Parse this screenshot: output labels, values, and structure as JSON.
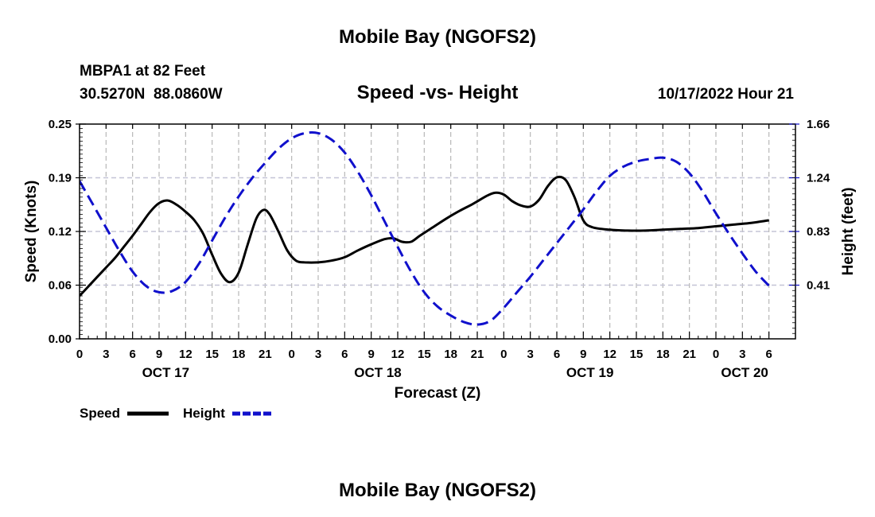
{
  "chart_data": {
    "type": "line",
    "title": "Mobile Bay (NGOFS2)",
    "footer_title": "Mobile Bay (NGOFS2)",
    "subtitle": "Speed -vs- Height",
    "station": "MBPA1 at 82 Feet",
    "coords": "30.5270N  88.0860W",
    "run_time": "10/17/2022 Hour 21",
    "xlabel": "Forecast (Z)",
    "ylabel": "Speed (Knots)",
    "y2label": "Height (feet)",
    "x_range": [
      0,
      81
    ],
    "ylim": [
      0,
      0.25
    ],
    "y2lim": [
      0,
      1.66
    ],
    "x_ticks": [
      {
        "x": 0,
        "label": "0"
      },
      {
        "x": 3,
        "label": "3"
      },
      {
        "x": 6,
        "label": "6"
      },
      {
        "x": 9,
        "label": "9"
      },
      {
        "x": 12,
        "label": "12"
      },
      {
        "x": 15,
        "label": "15"
      },
      {
        "x": 18,
        "label": "18"
      },
      {
        "x": 21,
        "label": "21"
      },
      {
        "x": 24,
        "label": "0"
      },
      {
        "x": 27,
        "label": "3"
      },
      {
        "x": 30,
        "label": "6"
      },
      {
        "x": 33,
        "label": "9"
      },
      {
        "x": 36,
        "label": "12"
      },
      {
        "x": 39,
        "label": "15"
      },
      {
        "x": 42,
        "label": "18"
      },
      {
        "x": 45,
        "label": "21"
      },
      {
        "x": 48,
        "label": "0"
      },
      {
        "x": 51,
        "label": "3"
      },
      {
        "x": 54,
        "label": "6"
      },
      {
        "x": 57,
        "label": "9"
      },
      {
        "x": 60,
        "label": "12"
      },
      {
        "x": 63,
        "label": "15"
      },
      {
        "x": 66,
        "label": "18"
      },
      {
        "x": 69,
        "label": "21"
      },
      {
        "x": 72,
        "label": "0"
      },
      {
        "x": 75,
        "label": "3"
      },
      {
        "x": 78,
        "label": "6"
      }
    ],
    "date_labels": [
      {
        "x": 9.75,
        "label": "OCT 17"
      },
      {
        "x": 33.75,
        "label": "OCT 18"
      },
      {
        "x": 57.75,
        "label": "OCT 19"
      },
      {
        "x": 75.25,
        "label": "OCT 20"
      }
    ],
    "y_ticks": [
      "0.00",
      "0.06",
      "0.12",
      "0.19",
      "0.25"
    ],
    "y_tick_values": [
      0,
      0.0625,
      0.125,
      0.1875,
      0.25
    ],
    "y2_ticks": [
      "0.41",
      "0.83",
      "1.24",
      "1.66"
    ],
    "y2_tick_values": [
      0.415,
      0.83,
      1.245,
      1.66
    ],
    "legend": [
      {
        "name": "Speed",
        "color": "#000000",
        "dash": "solid"
      },
      {
        "name": "Height",
        "color": "#1010cc",
        "dash": "dashed"
      }
    ],
    "series": [
      {
        "name": "Speed",
        "axis": "left",
        "color": "#000000",
        "points": [
          [
            0,
            0.05
          ],
          [
            1,
            0.061
          ],
          [
            2,
            0.072
          ],
          [
            3,
            0.083
          ],
          [
            4,
            0.094
          ],
          [
            5,
            0.107
          ],
          [
            6,
            0.12
          ],
          [
            7,
            0.134
          ],
          [
            8,
            0.148
          ],
          [
            9,
            0.158
          ],
          [
            10,
            0.161
          ],
          [
            11,
            0.156
          ],
          [
            12,
            0.148
          ],
          [
            13,
            0.138
          ],
          [
            14,
            0.122
          ],
          [
            15,
            0.098
          ],
          [
            16,
            0.076
          ],
          [
            17,
            0.066
          ],
          [
            18,
            0.077
          ],
          [
            19,
            0.109
          ],
          [
            20,
            0.14
          ],
          [
            20.8,
            0.15
          ],
          [
            21.5,
            0.145
          ],
          [
            22.5,
            0.125
          ],
          [
            23.5,
            0.103
          ],
          [
            24.5,
            0.091
          ],
          [
            25.5,
            0.089
          ],
          [
            27,
            0.089
          ],
          [
            28.5,
            0.091
          ],
          [
            30,
            0.095
          ],
          [
            31.5,
            0.103
          ],
          [
            33,
            0.11
          ],
          [
            34.5,
            0.116
          ],
          [
            35.5,
            0.117
          ],
          [
            36.5,
            0.113
          ],
          [
            37.5,
            0.113
          ],
          [
            38.5,
            0.12
          ],
          [
            40,
            0.13
          ],
          [
            41.5,
            0.14
          ],
          [
            43,
            0.149
          ],
          [
            44.5,
            0.157
          ],
          [
            46,
            0.166
          ],
          [
            47,
            0.17
          ],
          [
            48,
            0.168
          ],
          [
            49,
            0.16
          ],
          [
            50,
            0.155
          ],
          [
            51,
            0.154
          ],
          [
            52,
            0.162
          ],
          [
            53,
            0.178
          ],
          [
            54,
            0.188
          ],
          [
            55,
            0.185
          ],
          [
            56,
            0.165
          ],
          [
            57,
            0.138
          ],
          [
            58,
            0.13
          ],
          [
            60,
            0.127
          ],
          [
            62,
            0.126
          ],
          [
            64,
            0.126
          ],
          [
            66,
            0.127
          ],
          [
            68,
            0.128
          ],
          [
            70,
            0.129
          ],
          [
            72,
            0.131
          ],
          [
            74,
            0.133
          ],
          [
            76,
            0.135
          ],
          [
            78,
            0.138
          ]
        ]
      },
      {
        "name": "Height",
        "axis": "right",
        "color": "#1010cc",
        "points": [
          [
            0,
            1.22
          ],
          [
            1.5,
            1.04
          ],
          [
            3,
            0.86
          ],
          [
            4.5,
            0.68
          ],
          [
            6,
            0.52
          ],
          [
            7.5,
            0.41
          ],
          [
            9,
            0.36
          ],
          [
            10.5,
            0.37
          ],
          [
            12,
            0.44
          ],
          [
            13.5,
            0.58
          ],
          [
            15,
            0.76
          ],
          [
            16.5,
            0.94
          ],
          [
            18,
            1.1
          ],
          [
            19.5,
            1.24
          ],
          [
            21,
            1.36
          ],
          [
            22.5,
            1.47
          ],
          [
            24,
            1.55
          ],
          [
            25.5,
            1.59
          ],
          [
            27,
            1.59
          ],
          [
            28.5,
            1.54
          ],
          [
            30,
            1.44
          ],
          [
            31.5,
            1.29
          ],
          [
            33,
            1.11
          ],
          [
            34.5,
            0.91
          ],
          [
            36,
            0.71
          ],
          [
            37.5,
            0.52
          ],
          [
            39,
            0.36
          ],
          [
            40.5,
            0.25
          ],
          [
            42,
            0.18
          ],
          [
            43.5,
            0.13
          ],
          [
            45,
            0.11
          ],
          [
            46.5,
            0.14
          ],
          [
            48,
            0.24
          ],
          [
            49.5,
            0.36
          ],
          [
            51,
            0.48
          ],
          [
            52.5,
            0.61
          ],
          [
            54,
            0.74
          ],
          [
            55.5,
            0.87
          ],
          [
            57,
            1.0
          ],
          [
            58.5,
            1.14
          ],
          [
            60,
            1.26
          ],
          [
            61.5,
            1.33
          ],
          [
            63,
            1.37
          ],
          [
            64.5,
            1.39
          ],
          [
            66,
            1.4
          ],
          [
            67.5,
            1.37
          ],
          [
            69,
            1.28
          ],
          [
            70.5,
            1.14
          ],
          [
            72,
            0.97
          ],
          [
            73.5,
            0.81
          ],
          [
            75,
            0.66
          ],
          [
            76.5,
            0.52
          ],
          [
            78,
            0.41
          ]
        ]
      }
    ]
  }
}
